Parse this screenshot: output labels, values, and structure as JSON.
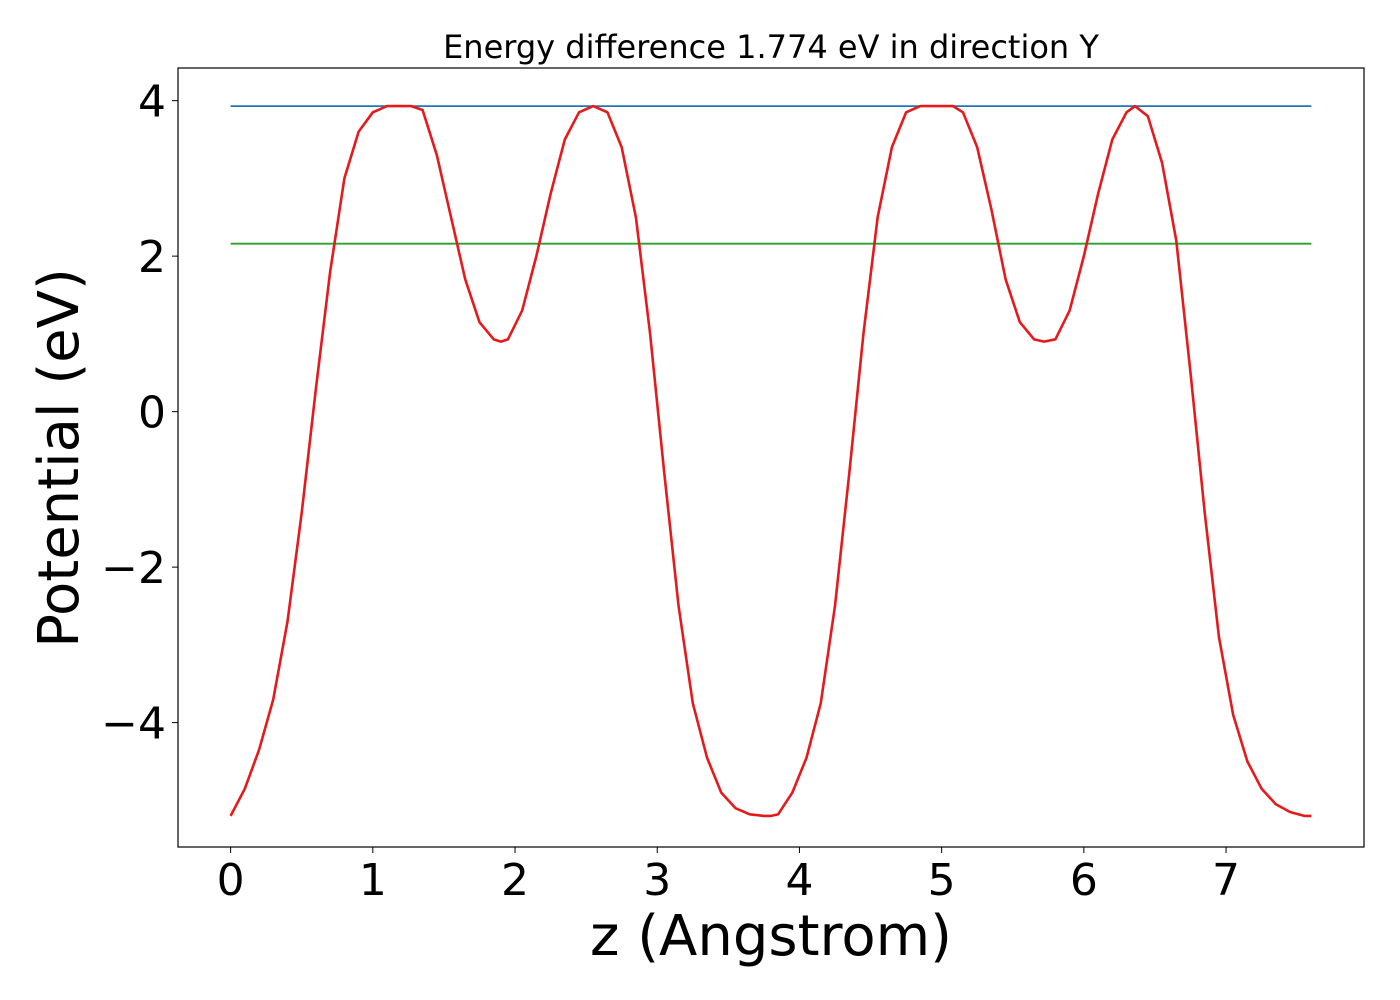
{
  "chart_data": {
    "type": "line",
    "title": "Energy difference 1.774 eV in direction Y",
    "xlabel": "z (Angstrom)",
    "ylabel": "Potential (eV)",
    "xlim": [
      -0.37,
      7.97
    ],
    "ylim": [
      -5.6,
      4.42
    ],
    "xticks": [
      0,
      1,
      2,
      3,
      4,
      5,
      6,
      7
    ],
    "xtick_labels": [
      "0",
      "1",
      "2",
      "3",
      "4",
      "5",
      "6",
      "7"
    ],
    "yticks": [
      4,
      2,
      0,
      -2,
      -4
    ],
    "ytick_labels": [
      "4",
      "2",
      "0",
      "−2",
      "−4"
    ],
    "grid": false,
    "legend": "none",
    "series": [
      {
        "color": "#1f77b4",
        "x": [
          0.0,
          7.6
        ],
        "y": [
          3.93,
          3.93
        ]
      },
      {
        "color": "#2ca02c",
        "x": [
          0.0,
          7.6
        ],
        "y": [
          2.16,
          2.16
        ]
      },
      {
        "color": "#e41a1c",
        "x": [
          0.0,
          0.1,
          0.2,
          0.3,
          0.4,
          0.5,
          0.6,
          0.7,
          0.8,
          0.9,
          1.0,
          1.1,
          1.2,
          1.27,
          1.35,
          1.45,
          1.55,
          1.65,
          1.75,
          1.85,
          1.9,
          1.95,
          2.05,
          2.15,
          2.25,
          2.35,
          2.45,
          2.55,
          2.65,
          2.75,
          2.85,
          2.95,
          3.05,
          3.15,
          3.25,
          3.35,
          3.45,
          3.55,
          3.65,
          3.75,
          3.8,
          3.85,
          3.95,
          4.05,
          4.15,
          4.25,
          4.35,
          4.45,
          4.55,
          4.65,
          4.75,
          4.85,
          4.95,
          5.08,
          5.15,
          5.25,
          5.35,
          5.45,
          5.55,
          5.65,
          5.72,
          5.8,
          5.9,
          6.0,
          6.1,
          6.2,
          6.3,
          6.36,
          6.45,
          6.55,
          6.65,
          6.75,
          6.85,
          6.95,
          7.05,
          7.15,
          7.25,
          7.35,
          7.45,
          7.55,
          7.6
        ],
        "y": [
          -5.2,
          -4.85,
          -4.35,
          -3.7,
          -2.7,
          -1.3,
          0.3,
          1.8,
          3.0,
          3.6,
          3.85,
          3.93,
          3.93,
          3.93,
          3.88,
          3.3,
          2.5,
          1.7,
          1.15,
          0.93,
          0.9,
          0.93,
          1.3,
          2.0,
          2.8,
          3.5,
          3.85,
          3.93,
          3.85,
          3.4,
          2.5,
          1.0,
          -0.8,
          -2.5,
          -3.75,
          -4.45,
          -4.9,
          -5.1,
          -5.18,
          -5.2,
          -5.2,
          -5.18,
          -4.9,
          -4.45,
          -3.75,
          -2.5,
          -0.8,
          1.0,
          2.5,
          3.4,
          3.85,
          3.93,
          3.93,
          3.93,
          3.85,
          3.4,
          2.6,
          1.7,
          1.15,
          0.93,
          0.9,
          0.93,
          1.3,
          2.0,
          2.8,
          3.5,
          3.85,
          3.93,
          3.8,
          3.2,
          2.2,
          0.5,
          -1.3,
          -2.9,
          -3.9,
          -4.5,
          -4.85,
          -5.05,
          -5.15,
          -5.2,
          -5.2
        ]
      }
    ]
  }
}
